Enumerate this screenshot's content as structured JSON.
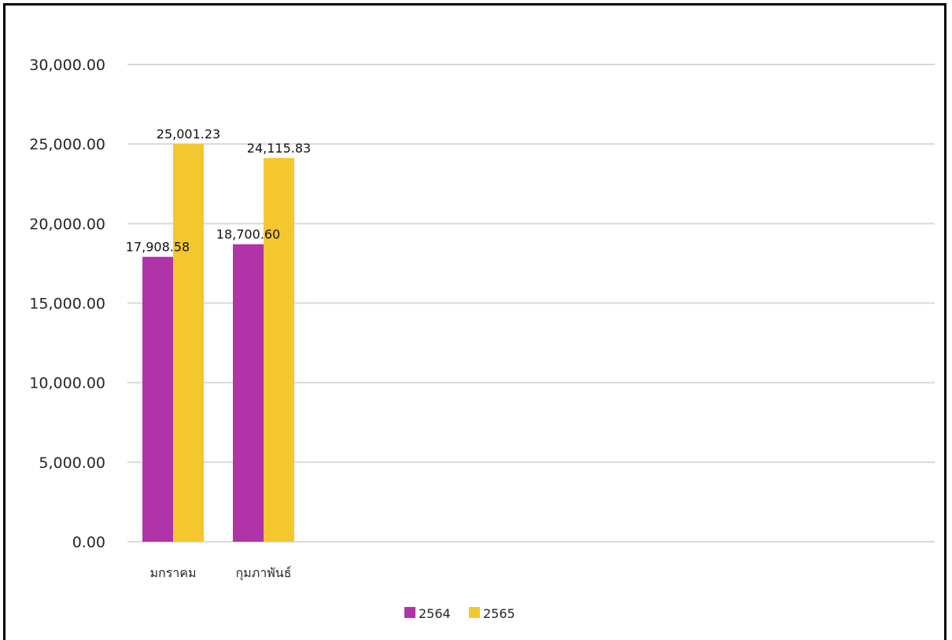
{
  "chart_data": {
    "type": "bar",
    "title": "",
    "xlabel": "",
    "ylabel": "",
    "categories": [
      "มกราคม",
      "กุมภาพันธ์"
    ],
    "series": [
      {
        "name": "2564",
        "values": [
          17908.58,
          18700.6
        ],
        "labels": [
          "17,908.58",
          "18,700.60"
        ],
        "color": "#b033a8"
      },
      {
        "name": "2565",
        "values": [
          25001.23,
          24115.83
        ],
        "labels": [
          "25,001.23",
          "24,115.83"
        ],
        "color": "#f5c72e"
      }
    ],
    "ylim": [
      0,
      30000
    ],
    "y_ticks": [
      0,
      5000,
      10000,
      15000,
      20000,
      25000,
      30000
    ],
    "y_tick_labels": [
      "0.00",
      "5,000.00",
      "10,000.00",
      "15,000.00",
      "20,000.00",
      "25,000.00",
      "30,000.00"
    ],
    "grid": true,
    "legend": "bottom",
    "colors": {
      "gridline": "#d9d9d9",
      "axis": "#d9d9d9",
      "frame": "#000000"
    }
  }
}
